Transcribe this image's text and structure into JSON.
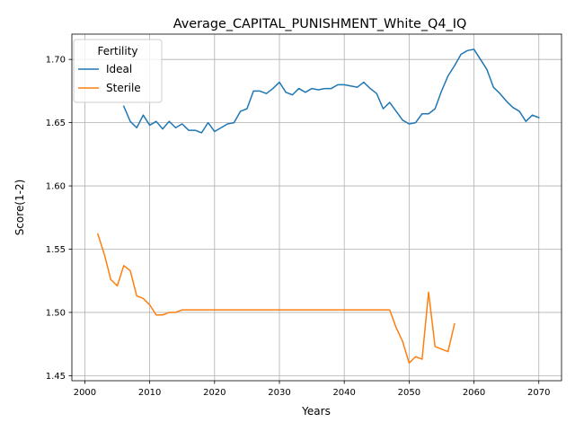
{
  "chart_data": {
    "type": "line",
    "title": "Average_CAPITAL_PUNISHMENT_White_Q4_IQ",
    "xlabel": "Years",
    "ylabel": "Score(1-2)",
    "xlim": [
      1998,
      2073.5
    ],
    "ylim": [
      1.446,
      1.72
    ],
    "xticks": [
      2000,
      2010,
      2020,
      2030,
      2040,
      2050,
      2060,
      2070
    ],
    "yticks": [
      1.45,
      1.5,
      1.55,
      1.6,
      1.65,
      1.7
    ],
    "ytick_labels": [
      "1.45",
      "1.50",
      "1.55",
      "1.60",
      "1.65",
      "1.70"
    ],
    "grid": true,
    "legend": {
      "title": "Fertility",
      "position": "top-left"
    },
    "series": [
      {
        "name": "Ideal",
        "color": "#1f77b4",
        "points": [
          [
            2006,
            1.663
          ],
          [
            2007,
            1.651
          ],
          [
            2008,
            1.646
          ],
          [
            2009,
            1.656
          ],
          [
            2010,
            1.648
          ],
          [
            2011,
            1.651
          ],
          [
            2012,
            1.645
          ],
          [
            2013,
            1.651
          ],
          [
            2014,
            1.646
          ],
          [
            2015,
            1.649
          ],
          [
            2016,
            1.644
          ],
          [
            2017,
            1.644
          ],
          [
            2018,
            1.642
          ],
          [
            2019,
            1.65
          ],
          [
            2020,
            1.643
          ],
          [
            2021,
            1.646
          ],
          [
            2022,
            1.649
          ],
          [
            2023,
            1.65
          ],
          [
            2024,
            1.659
          ],
          [
            2025,
            1.661
          ],
          [
            2026,
            1.675
          ],
          [
            2027,
            1.675
          ],
          [
            2028,
            1.673
          ],
          [
            2029,
            1.677
          ],
          [
            2030,
            1.682
          ],
          [
            2031,
            1.674
          ],
          [
            2032,
            1.672
          ],
          [
            2033,
            1.677
          ],
          [
            2034,
            1.674
          ],
          [
            2035,
            1.677
          ],
          [
            2036,
            1.676
          ],
          [
            2037,
            1.677
          ],
          [
            2038,
            1.677
          ],
          [
            2039,
            1.68
          ],
          [
            2040,
            1.68
          ],
          [
            2041,
            1.679
          ],
          [
            2042,
            1.678
          ],
          [
            2043,
            1.682
          ],
          [
            2044,
            1.677
          ],
          [
            2045,
            1.673
          ],
          [
            2046,
            1.661
          ],
          [
            2047,
            1.666
          ],
          [
            2048,
            1.659
          ],
          [
            2049,
            1.652
          ],
          [
            2050,
            1.649
          ],
          [
            2051,
            1.65
          ],
          [
            2052,
            1.657
          ],
          [
            2053,
            1.657
          ],
          [
            2054,
            1.661
          ],
          [
            2055,
            1.675
          ],
          [
            2056,
            1.687
          ],
          [
            2057,
            1.695
          ],
          [
            2058,
            1.704
          ],
          [
            2059,
            1.707
          ],
          [
            2060,
            1.708
          ],
          [
            2061,
            1.7
          ],
          [
            2062,
            1.692
          ],
          [
            2063,
            1.678
          ],
          [
            2064,
            1.673
          ],
          [
            2065,
            1.667
          ],
          [
            2066,
            1.662
          ],
          [
            2067,
            1.659
          ],
          [
            2068,
            1.651
          ],
          [
            2069,
            1.656
          ],
          [
            2070,
            1.654
          ]
        ]
      },
      {
        "name": "Sterile",
        "color": "#ff7f0e",
        "points": [
          [
            2002,
            1.562
          ],
          [
            2003,
            1.546
          ],
          [
            2004,
            1.526
          ],
          [
            2005,
            1.521
          ],
          [
            2006,
            1.537
          ],
          [
            2007,
            1.533
          ],
          [
            2008,
            1.513
          ],
          [
            2009,
            1.511
          ],
          [
            2010,
            1.506
          ],
          [
            2011,
            1.498
          ],
          [
            2012,
            1.498
          ],
          [
            2013,
            1.5
          ],
          [
            2014,
            1.5
          ],
          [
            2015,
            1.502
          ],
          [
            2016,
            1.502
          ],
          [
            2017,
            1.502
          ],
          [
            2018,
            1.502
          ],
          [
            2019,
            1.502
          ],
          [
            2020,
            1.502
          ],
          [
            2021,
            1.502
          ],
          [
            2022,
            1.502
          ],
          [
            2023,
            1.502
          ],
          [
            2024,
            1.502
          ],
          [
            2025,
            1.502
          ],
          [
            2026,
            1.502
          ],
          [
            2027,
            1.502
          ],
          [
            2028,
            1.502
          ],
          [
            2029,
            1.502
          ],
          [
            2030,
            1.502
          ],
          [
            2031,
            1.502
          ],
          [
            2032,
            1.502
          ],
          [
            2033,
            1.502
          ],
          [
            2034,
            1.502
          ],
          [
            2035,
            1.502
          ],
          [
            2036,
            1.502
          ],
          [
            2037,
            1.502
          ],
          [
            2038,
            1.502
          ],
          [
            2039,
            1.502
          ],
          [
            2040,
            1.502
          ],
          [
            2041,
            1.502
          ],
          [
            2042,
            1.502
          ],
          [
            2043,
            1.502
          ],
          [
            2044,
            1.502
          ],
          [
            2045,
            1.502
          ],
          [
            2046,
            1.502
          ],
          [
            2047,
            1.502
          ],
          [
            2048,
            1.488
          ],
          [
            2049,
            1.477
          ],
          [
            2050,
            1.46
          ],
          [
            2051,
            1.465
          ],
          [
            2052,
            1.463
          ],
          [
            2053,
            1.516
          ],
          [
            2054,
            1.473
          ],
          [
            2055,
            1.471
          ],
          [
            2056,
            1.469
          ],
          [
            2057,
            1.491
          ]
        ]
      }
    ]
  }
}
